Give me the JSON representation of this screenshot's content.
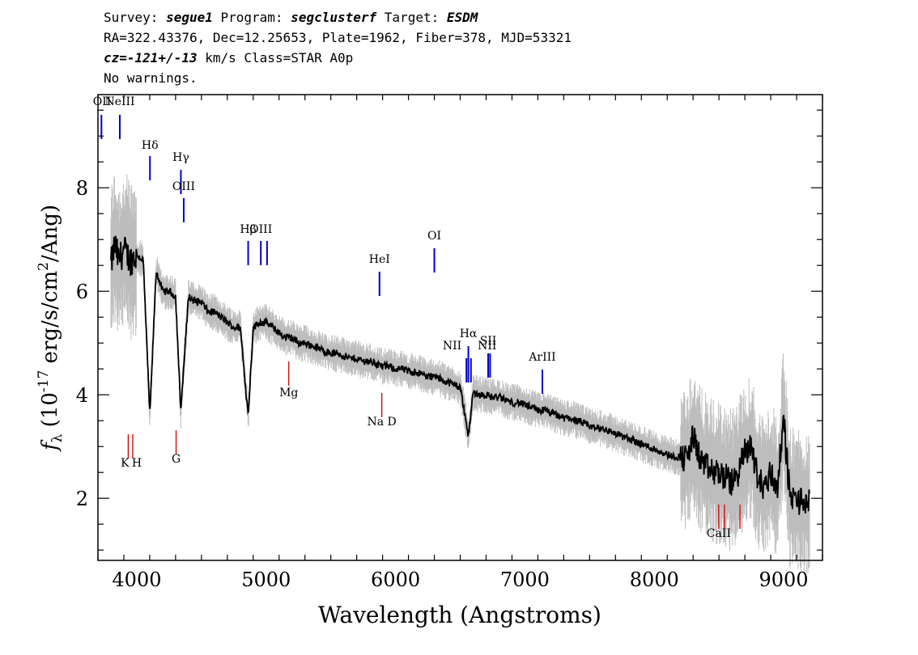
{
  "header": {
    "line1": {
      "survey_label": "Survey: ",
      "survey": "segue1",
      "program_label": " Program: ",
      "program": "segclusterf",
      "target_label": " Target: ",
      "target": "ESDM"
    },
    "line2": "RA=322.43376, Dec=12.25653, Plate=1962, Fiber=378, MJD=53321",
    "line3": {
      "cz_label": "cz=",
      "cz_value": "-121+/-13",
      "rest": " km/s Class=STAR A0p"
    },
    "line4": "No warnings."
  },
  "chart_data": {
    "type": "line",
    "xlabel": "Wavelength (Angstroms)",
    "ylabel_prefix": "f",
    "ylabel_sub": "λ",
    "ylabel_rest": " (10",
    "ylabel_exp": "-17",
    "ylabel_units": " erg/s/cm",
    "ylabel_exp2": "2",
    "ylabel_tail": "/Ang)",
    "xlim": [
      3700,
      9300
    ],
    "ylim": [
      0.8,
      9.8
    ],
    "x_ticks": [
      4000,
      5000,
      6000,
      7000,
      8000,
      9000
    ],
    "x_tick_labels": [
      "4000",
      "5000",
      "6000",
      "7000",
      "8000",
      "9000"
    ],
    "y_ticks": [
      2,
      4,
      6,
      8
    ],
    "y_tick_labels": [
      "2",
      "4",
      "6",
      "8"
    ],
    "colors": {
      "spectrum": "#000000",
      "error_band": "#bdbdbd",
      "emission": "#0000cc",
      "absorption": "#cc0000"
    },
    "series": [
      {
        "role": "flux",
        "x": [
          3800,
          3830,
          3860,
          3900,
          3950,
          4000,
          4050,
          4101,
          4150,
          4200,
          4250,
          4300,
          4340,
          4400,
          4450,
          4500,
          4550,
          4600,
          4650,
          4700,
          4750,
          4800,
          4861,
          4900,
          4950,
          5000,
          5050,
          5100,
          5150,
          5200,
          5250,
          5300,
          5350,
          5400,
          5450,
          5500,
          5550,
          5600,
          5650,
          5700,
          5750,
          5800,
          5850,
          5900,
          5950,
          6000,
          6050,
          6100,
          6150,
          6200,
          6250,
          6300,
          6350,
          6400,
          6450,
          6500,
          6563,
          6600,
          6650,
          6700,
          6750,
          6800,
          6850,
          6900,
          6950,
          7000,
          7050,
          7100,
          7150,
          7200,
          7250,
          7300,
          7350,
          7400,
          7450,
          7500,
          7550,
          7600,
          7650,
          7700,
          7750,
          7800,
          7850,
          7900,
          7950,
          8000,
          8050,
          8100,
          8150,
          8200,
          8250,
          8300,
          8350,
          8400,
          8450,
          8500,
          8550,
          8600,
          8650,
          8700,
          8750,
          8800,
          8850,
          8900,
          8950,
          9000,
          9050,
          9100,
          9150,
          9200
        ],
        "y": [
          6.5,
          6.9,
          6.6,
          6.8,
          6.6,
          6.7,
          6.6,
          3.6,
          6.4,
          6.0,
          6.0,
          5.9,
          3.7,
          5.9,
          5.8,
          5.8,
          5.6,
          5.6,
          5.5,
          5.4,
          5.3,
          5.3,
          3.6,
          5.3,
          5.4,
          5.4,
          5.3,
          5.2,
          5.1,
          5.1,
          5.0,
          5.0,
          4.95,
          4.9,
          4.85,
          4.8,
          4.8,
          4.75,
          4.7,
          4.7,
          4.65,
          4.65,
          4.6,
          4.55,
          4.55,
          4.5,
          4.5,
          4.45,
          4.45,
          4.4,
          4.35,
          4.35,
          4.3,
          4.25,
          4.2,
          4.15,
          3.2,
          4.05,
          4.0,
          4.0,
          3.95,
          3.95,
          3.9,
          3.85,
          3.85,
          3.8,
          3.75,
          3.7,
          3.7,
          3.65,
          3.6,
          3.55,
          3.55,
          3.5,
          3.45,
          3.4,
          3.35,
          3.35,
          3.3,
          3.25,
          3.2,
          3.15,
          3.1,
          3.05,
          3.0,
          2.95,
          2.9,
          2.85,
          2.8,
          2.8,
          2.75,
          3.2,
          2.8,
          2.6,
          2.5,
          2.5,
          2.4,
          2.3,
          2.5,
          2.9,
          3.0,
          2.4,
          2.2,
          2.5,
          2.2,
          3.5,
          2.0,
          2.0,
          1.9,
          1.95
        ]
      }
    ],
    "line_labels": [
      {
        "name": "OII",
        "x": 3727,
        "type": "emission",
        "text": "OII"
      },
      {
        "name": "NeIII",
        "x": 3869,
        "type": "emission",
        "text": "NeIII"
      },
      {
        "name": "H-delta",
        "x": 4102,
        "type": "emission",
        "text": "Hδ"
      },
      {
        "name": "H-gamma",
        "x": 4341,
        "type": "emission",
        "text": "Hγ"
      },
      {
        "name": "OIII-4363",
        "x": 4363,
        "type": "emission",
        "text": "OIII"
      },
      {
        "name": "H-beta",
        "x": 4861,
        "type": "emission",
        "text": "Hβ"
      },
      {
        "name": "OIII",
        "x": 4959,
        "type": "emission",
        "text": "OIII"
      },
      {
        "name": "OIII-5007",
        "x": 5007,
        "type": "emission",
        "text": ""
      },
      {
        "name": "HeI",
        "x": 5876,
        "type": "emission",
        "text": "HeI"
      },
      {
        "name": "OI",
        "x": 6300,
        "type": "emission",
        "text": "OI"
      },
      {
        "name": "NII-6548",
        "x": 6548,
        "type": "emission",
        "text": "NII"
      },
      {
        "name": "H-alpha",
        "x": 6563,
        "type": "emission",
        "text": "Hα"
      },
      {
        "name": "NII-6583",
        "x": 6583,
        "type": "emission",
        "text": "NII"
      },
      {
        "name": "SII-6716",
        "x": 6716,
        "type": "emission",
        "text": "SII"
      },
      {
        "name": "SII-6731",
        "x": 6731,
        "type": "emission",
        "text": ""
      },
      {
        "name": "ArIII",
        "x": 7135,
        "type": "emission",
        "text": "ArIII"
      },
      {
        "name": "K",
        "x": 3934,
        "type": "absorption",
        "text": "K"
      },
      {
        "name": "H",
        "x": 3969,
        "type": "absorption",
        "text": "H"
      },
      {
        "name": "G",
        "x": 4304,
        "type": "absorption",
        "text": "G"
      },
      {
        "name": "Mg",
        "x": 5175,
        "type": "absorption",
        "text": "Mg"
      },
      {
        "name": "Na-D",
        "x": 5894,
        "type": "absorption",
        "text": "Na D"
      },
      {
        "name": "CaII-8498",
        "x": 8498,
        "type": "absorption",
        "text": "CaII"
      },
      {
        "name": "CaII-8542",
        "x": 8542,
        "type": "absorption",
        "text": ""
      },
      {
        "name": "CaII-8662",
        "x": 8662,
        "type": "absorption",
        "text": ""
      }
    ]
  }
}
